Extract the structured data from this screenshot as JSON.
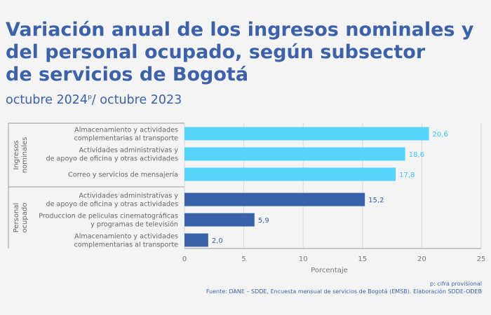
{
  "title_lines": [
    "Variación anual de los ingresos nominales y",
    "del personal ocupado, según subsector",
    "de servicios de Bogotá"
  ],
  "subtitle": {
    "part1": "octubre 2024",
    "sup": "p",
    "part2": "/ octubre 2023"
  },
  "chart_data": {
    "type": "bar",
    "orientation": "horizontal",
    "xlabel": "Porcentaje",
    "xlim": [
      0,
      25
    ],
    "xticks": [
      0,
      5,
      10,
      15,
      20,
      25
    ],
    "grid": true,
    "value_format": "decimal-comma",
    "groups": [
      {
        "label": "Ingresos nominales",
        "label_lines": [
          "Ingresos",
          "nominales"
        ],
        "bar_color": "#56d4fa",
        "label_color": "#36c7f4",
        "categories": [
          [
            "Almacenamiento y actividades",
            "complementarias al transporte"
          ],
          [
            "Actividades administrativas y",
            "de apoyo de oficina y otras actividades"
          ],
          [
            "Correo y servicios de mensajería"
          ]
        ],
        "values": [
          20.6,
          18.6,
          17.8
        ]
      },
      {
        "label": "Personal ocupado",
        "label_lines": [
          "Personal",
          "ocupado"
        ],
        "bar_color": "#3962a8",
        "label_color": "#3962a8",
        "categories": [
          [
            "Actividades administrativas y",
            "de apoyo de oficina y otras actividades"
          ],
          [
            "Produccion de peliculas cinematográficas",
            "y programas de televisión"
          ],
          [
            "Almacenamiento y actividades",
            "complementarias al transporte"
          ]
        ],
        "values": [
          15.2,
          5.9,
          2.0
        ]
      }
    ]
  },
  "notes": {
    "provisional": "p: cifra provisional",
    "source": "Fuente: DANE – SDDE, Encuesta mensual de servicios de Bogotá (EMSB). Elaboración SDDE-ODEB"
  }
}
